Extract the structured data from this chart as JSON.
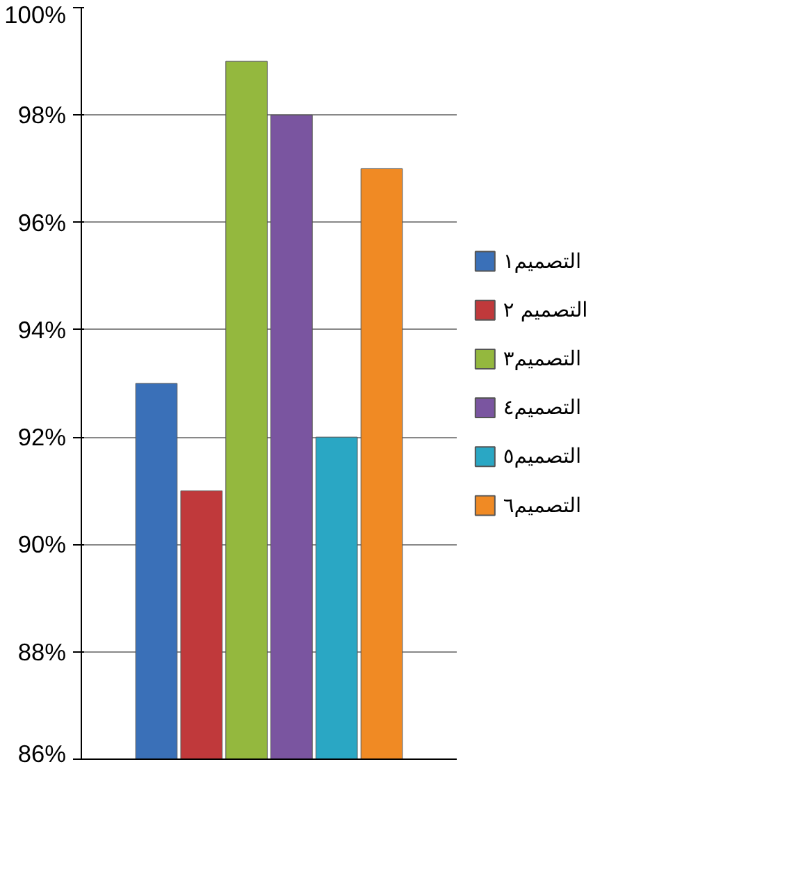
{
  "chart_data": {
    "type": "bar",
    "categories": [
      null
    ],
    "series": [
      {
        "name": "التصميم١",
        "color": "#3a70b8",
        "values": [
          93
        ]
      },
      {
        "name": "التصميم ٢",
        "color": "#c0393b",
        "values": [
          91
        ]
      },
      {
        "name": "التصميم٣",
        "color": "#94b83e",
        "values": [
          99
        ]
      },
      {
        "name": "التصميم٤",
        "color": "#7a55a0",
        "values": [
          98
        ]
      },
      {
        "name": "التصميم٥",
        "color": "#2aa7c4",
        "values": [
          92
        ]
      },
      {
        "name": "التصميم٦",
        "color": "#f08a24",
        "values": [
          97
        ]
      }
    ],
    "ylim": [
      86,
      100
    ],
    "yticks": [
      {
        "value": 86,
        "label": "86%"
      },
      {
        "value": 88,
        "label": "88%"
      },
      {
        "value": 90,
        "label": "90%"
      },
      {
        "value": 92,
        "label": "92%"
      },
      {
        "value": 94,
        "label": "94%"
      },
      {
        "value": 96,
        "label": "96%"
      },
      {
        "value": 98,
        "label": "98%"
      },
      {
        "value": 100,
        "label": "100%"
      }
    ],
    "grid": "y",
    "legend": "right"
  }
}
